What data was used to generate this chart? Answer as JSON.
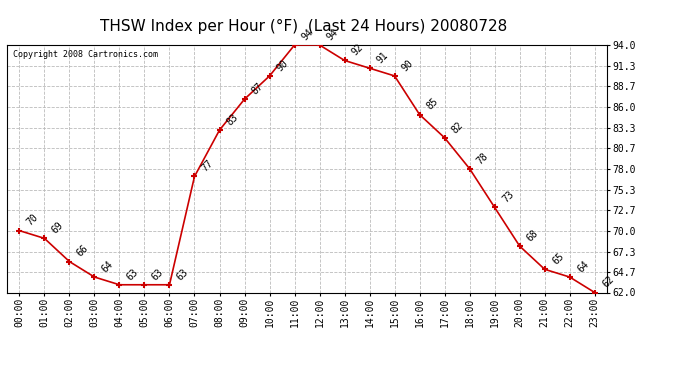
{
  "title": "THSW Index per Hour (°F)  (Last 24 Hours) 20080728",
  "copyright": "Copyright 2008 Cartronics.com",
  "hours": [
    "00:00",
    "01:00",
    "02:00",
    "03:00",
    "04:00",
    "05:00",
    "06:00",
    "07:00",
    "08:00",
    "09:00",
    "10:00",
    "11:00",
    "12:00",
    "13:00",
    "14:00",
    "15:00",
    "16:00",
    "17:00",
    "18:00",
    "19:00",
    "20:00",
    "21:00",
    "22:00",
    "23:00"
  ],
  "values": [
    70,
    69,
    66,
    64,
    63,
    63,
    63,
    77,
    83,
    87,
    90,
    94,
    94,
    92,
    91,
    90,
    85,
    82,
    78,
    73,
    68,
    65,
    64,
    62
  ],
  "line_color": "#cc0000",
  "marker": "+",
  "marker_size": 5,
  "marker_color": "#cc0000",
  "bg_color": "#ffffff",
  "grid_color": "#bbbbbb",
  "label_color": "#000000",
  "ylim_min": 62.0,
  "ylim_max": 94.0,
  "yticks": [
    62.0,
    64.7,
    67.3,
    70.0,
    72.7,
    75.3,
    78.0,
    80.7,
    83.3,
    86.0,
    88.7,
    91.3,
    94.0
  ],
  "title_fontsize": 11,
  "tick_fontsize": 7,
  "annotation_fontsize": 7,
  "copyright_fontsize": 6
}
